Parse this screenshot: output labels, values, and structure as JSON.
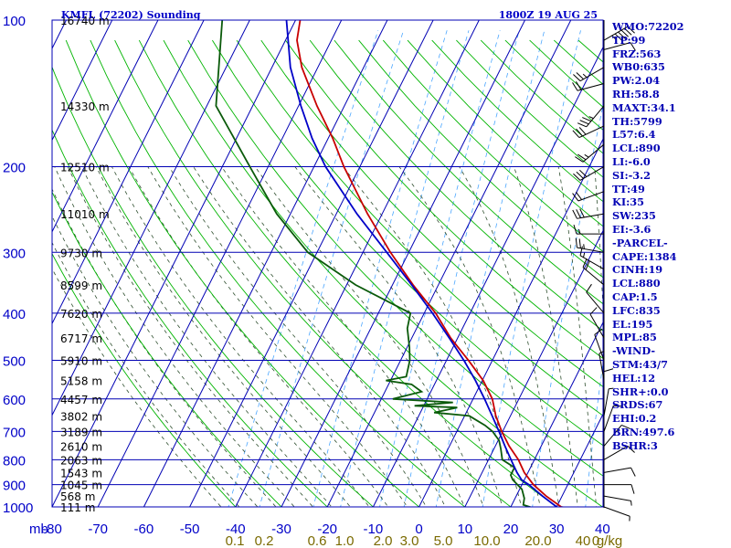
{
  "header": {
    "title": "KMFL (72202) Sounding",
    "time": "1800Z 19 AUG 25"
  },
  "indices": [
    "WMO:72202",
    "TP:99",
    "FRZ:563",
    "WB0:635",
    "PW:2.04",
    "RH:58.8",
    "MAXT:34.1",
    "TH:5799",
    "L57:6.4",
    "LCL:890",
    "LI:-6.0",
    "SI:-3.2",
    "TT:49",
    "KI:35",
    "SW:235",
    "EI:-3.6",
    "-PARCEL-",
    "CAPE:1384",
    "CINH:19",
    "LCL:880",
    "CAP:1.5",
    "LFC:835",
    "EL:195",
    "MPL:85",
    "-WIND-",
    "STM:43/7",
    "HEL:12",
    "SHR+:0.0",
    "SRDS:67",
    "EHI:0.2",
    "BRN:497.6",
    "BSHR:3"
  ],
  "colors": {
    "grid": "#0000b4",
    "dry_adiabat": "#00b400",
    "moist_adiabat": "#2f4f2f",
    "mixing_ratio": "#4aa6ff",
    "temperature": "#c80000",
    "dewpoint": "#0a5a0a",
    "parcel": "#0000c8",
    "wind": "#000000"
  },
  "chart_data": {
    "type": "skew-t",
    "title": "KMFL (72202) Sounding",
    "xlabel": "mb",
    "pressure_levels_mb": [
      100,
      200,
      300,
      400,
      500,
      600,
      700,
      800,
      900,
      1000
    ],
    "pressure_labels": [
      "100",
      "200",
      "300",
      "400",
      "500",
      "600",
      "700",
      "800",
      "900",
      "1000"
    ],
    "temperature_ticks_c": [
      -80,
      -70,
      -60,
      -50,
      -40,
      -30,
      -20,
      -10,
      0,
      10,
      20,
      30,
      40
    ],
    "temperature_labels": [
      "-80",
      "-70",
      "-60",
      "-50",
      "-40",
      "-30",
      "-20",
      "-10",
      "0",
      "10",
      "20",
      "30",
      "40"
    ],
    "height_labels": [
      {
        "p": 100,
        "label": "16740 m"
      },
      {
        "p": 150,
        "label": "14330 m"
      },
      {
        "p": 200,
        "label": "12510 m"
      },
      {
        "p": 250,
        "label": "11010 m"
      },
      {
        "p": 300,
        "label": "9730 m"
      },
      {
        "p": 350,
        "label": "8599 m"
      },
      {
        "p": 400,
        "label": "7620 m"
      },
      {
        "p": 450,
        "label": "6717 m"
      },
      {
        "p": 500,
        "label": "5910 m"
      },
      {
        "p": 550,
        "label": "5158 m"
      },
      {
        "p": 600,
        "label": "4457 m"
      },
      {
        "p": 650,
        "label": "3802 m"
      },
      {
        "p": 700,
        "label": "3189 m"
      },
      {
        "p": 750,
        "label": "2610 m"
      },
      {
        "p": 800,
        "label": "2063 m"
      },
      {
        "p": 850,
        "label": "1543 m"
      },
      {
        "p": 900,
        "label": "1045 m"
      },
      {
        "p": 950,
        "label": "568 m"
      },
      {
        "p": 1000,
        "label": "111 m"
      }
    ],
    "mixing_ratio_labels": [
      "0.1",
      "0.2",
      "0.6",
      "1.0",
      "2.0",
      "3.0",
      "5.0",
      "10.0",
      "20.0",
      "40",
      "0",
      "g/kg"
    ],
    "mixing_ratio_values": [
      0.1,
      0.2,
      0.6,
      1.0,
      2.0,
      3.0,
      5.0,
      10.0,
      20.0,
      40.0
    ],
    "skew_deg_per_decade": 25,
    "series": [
      {
        "key": "temperature",
        "points": [
          {
            "p": 1005,
            "t": 32.5
          },
          {
            "p": 1000,
            "t": 31
          },
          {
            "p": 950,
            "t": 26.5
          },
          {
            "p": 900,
            "t": 22.5
          },
          {
            "p": 850,
            "t": 19.2
          },
          {
            "p": 800,
            "t": 16.5
          },
          {
            "p": 750,
            "t": 13
          },
          {
            "p": 700,
            "t": 9.8
          },
          {
            "p": 650,
            "t": 6.8
          },
          {
            "p": 600,
            "t": 4.2
          },
          {
            "p": 550,
            "t": 0.2
          },
          {
            "p": 500,
            "t": -5.2
          },
          {
            "p": 450,
            "t": -11.5
          },
          {
            "p": 400,
            "t": -17.5
          },
          {
            "p": 350,
            "t": -25.5
          },
          {
            "p": 300,
            "t": -34
          },
          {
            "p": 250,
            "t": -43.2
          },
          {
            "p": 200,
            "t": -53.5
          },
          {
            "p": 175,
            "t": -59
          },
          {
            "p": 150,
            "t": -66
          },
          {
            "p": 125,
            "t": -73.5
          },
          {
            "p": 110,
            "t": -77.5
          },
          {
            "p": 100,
            "t": -79
          }
        ]
      },
      {
        "key": "dewpoint",
        "points": [
          {
            "p": 1005,
            "t": 25
          },
          {
            "p": 990,
            "t": 22.5
          },
          {
            "p": 960,
            "t": 22
          },
          {
            "p": 920,
            "t": 20.5
          },
          {
            "p": 880,
            "t": 17.5
          },
          {
            "p": 860,
            "t": 16.5
          },
          {
            "p": 830,
            "t": 16.5
          },
          {
            "p": 800,
            "t": 13
          },
          {
            "p": 760,
            "t": 11.5
          },
          {
            "p": 730,
            "t": 10.2
          },
          {
            "p": 700,
            "t": 7.8
          },
          {
            "p": 680,
            "t": 5.5
          },
          {
            "p": 650,
            "t": 1
          },
          {
            "p": 640,
            "t": -7
          },
          {
            "p": 625,
            "t": -2.5
          },
          {
            "p": 620,
            "t": -12
          },
          {
            "p": 610,
            "t": -4
          },
          {
            "p": 600,
            "t": -17.5
          },
          {
            "p": 580,
            "t": -12
          },
          {
            "p": 560,
            "t": -15
          },
          {
            "p": 550,
            "t": -21
          },
          {
            "p": 540,
            "t": -17
          },
          {
            "p": 500,
            "t": -18
          },
          {
            "p": 470,
            "t": -19.5
          },
          {
            "p": 430,
            "t": -22
          },
          {
            "p": 400,
            "t": -23
          },
          {
            "p": 350,
            "t": -38
          },
          {
            "p": 300,
            "t": -52
          },
          {
            "p": 250,
            "t": -63
          },
          {
            "p": 200,
            "t": -74
          },
          {
            "p": 150,
            "t": -88
          },
          {
            "p": 100,
            "t": -96
          }
        ]
      },
      {
        "key": "parcel",
        "points": [
          {
            "p": 1000,
            "t": 30
          },
          {
            "p": 950,
            "t": 25.7
          },
          {
            "p": 900,
            "t": 21.5
          },
          {
            "p": 880,
            "t": 19.4
          },
          {
            "p": 850,
            "t": 17.6
          },
          {
            "p": 800,
            "t": 14.9
          },
          {
            "p": 750,
            "t": 12.1
          },
          {
            "p": 700,
            "t": 9.2
          },
          {
            "p": 650,
            "t": 6.0
          },
          {
            "p": 600,
            "t": 2.5
          },
          {
            "p": 550,
            "t": -1.5
          },
          {
            "p": 500,
            "t": -6.2
          },
          {
            "p": 450,
            "t": -11.8
          },
          {
            "p": 400,
            "t": -18.2
          },
          {
            "p": 350,
            "t": -25.8
          },
          {
            "p": 300,
            "t": -34.8
          },
          {
            "p": 250,
            "t": -45.5
          },
          {
            "p": 200,
            "t": -57.5
          },
          {
            "p": 175,
            "t": -63.5
          },
          {
            "p": 150,
            "t": -69.5
          },
          {
            "p": 125,
            "t": -76
          },
          {
            "p": 100,
            "t": -82
          }
        ]
      }
    ],
    "wind_barbs": [
      {
        "p": 110,
        "dir": 60,
        "kt": 55
      },
      {
        "p": 115,
        "dir": 75,
        "kt": 10
      },
      {
        "p": 125,
        "dir": 240,
        "kt": 25
      },
      {
        "p": 135,
        "dir": 255,
        "kt": 20
      },
      {
        "p": 150,
        "dir": 220,
        "kt": 35
      },
      {
        "p": 165,
        "dir": 245,
        "kt": 30
      },
      {
        "p": 180,
        "dir": 230,
        "kt": 25
      },
      {
        "p": 200,
        "dir": 240,
        "kt": 30
      },
      {
        "p": 225,
        "dir": 250,
        "kt": 20
      },
      {
        "p": 250,
        "dir": 260,
        "kt": 30
      },
      {
        "p": 275,
        "dir": 270,
        "kt": 15
      },
      {
        "p": 300,
        "dir": 280,
        "kt": 25
      },
      {
        "p": 325,
        "dir": 300,
        "kt": 15
      },
      {
        "p": 350,
        "dir": 310,
        "kt": 20
      },
      {
        "p": 400,
        "dir": 320,
        "kt": 10
      },
      {
        "p": 450,
        "dir": 330,
        "kt": 10
      },
      {
        "p": 500,
        "dir": 340,
        "kt": 10
      },
      {
        "p": 550,
        "dir": 350,
        "kt": 5
      },
      {
        "p": 600,
        "dir": 360,
        "kt": 10
      },
      {
        "p": 650,
        "dir": 10,
        "kt": 5
      },
      {
        "p": 700,
        "dir": 20,
        "kt": 10
      },
      {
        "p": 750,
        "dir": 40,
        "kt": 10
      },
      {
        "p": 800,
        "dir": 60,
        "kt": 10
      },
      {
        "p": 850,
        "dir": 80,
        "kt": 10
      },
      {
        "p": 900,
        "dir": 90,
        "kt": 10
      },
      {
        "p": 950,
        "dir": 100,
        "kt": 5
      },
      {
        "p": 1000,
        "dir": 110,
        "kt": 5
      }
    ]
  }
}
